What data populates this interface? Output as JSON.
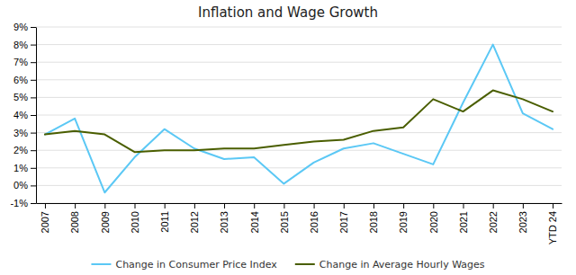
{
  "chart_data": {
    "type": "line",
    "title": "Inflation and Wage Growth",
    "categories": [
      "2007",
      "2008",
      "2009",
      "2010",
      "2011",
      "2012",
      "2013",
      "2014",
      "2015",
      "2016",
      "2017",
      "2018",
      "2019",
      "2020",
      "2021",
      "2022",
      "2023",
      "YTD 24"
    ],
    "series": [
      {
        "name": "Change in Consumer Price Index",
        "color": "#5BC8F5",
        "values": [
          2.9,
          3.8,
          -0.4,
          1.6,
          3.2,
          2.1,
          1.5,
          1.6,
          0.1,
          1.3,
          2.1,
          2.4,
          1.8,
          1.2,
          4.7,
          8.0,
          4.1,
          3.2
        ]
      },
      {
        "name": "Change in Average Hourly Wages",
        "color": "#4a5e00",
        "values": [
          2.9,
          3.1,
          2.9,
          1.9,
          2.0,
          2.0,
          2.1,
          2.1,
          2.3,
          2.5,
          2.6,
          3.1,
          3.3,
          4.9,
          4.2,
          5.4,
          4.9,
          4.2
        ]
      }
    ],
    "ylim": [
      -1,
      9
    ],
    "yticks": [
      {
        "value": -1,
        "label": "-1%"
      },
      {
        "value": 0,
        "label": "0%"
      },
      {
        "value": 1,
        "label": "1%"
      },
      {
        "value": 2,
        "label": "2%"
      },
      {
        "value": 3,
        "label": "3%"
      },
      {
        "value": 4,
        "label": "4%"
      },
      {
        "value": 5,
        "label": "5%"
      },
      {
        "value": 6,
        "label": "6%"
      },
      {
        "value": 7,
        "label": "7%"
      },
      {
        "value": 8,
        "label": "8%"
      },
      {
        "value": 9,
        "label": "9%"
      }
    ],
    "grid": true,
    "legend": "bottom"
  }
}
